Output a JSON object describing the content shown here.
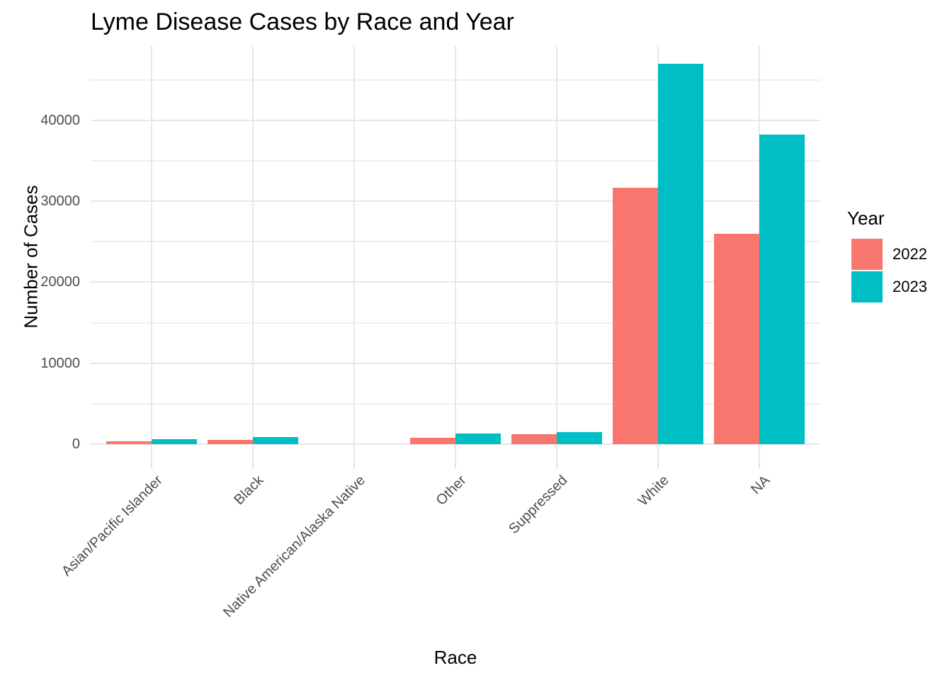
{
  "chart_data": {
    "type": "bar",
    "title": "Lyme Disease Cases by Race and Year",
    "xlabel": "Race",
    "ylabel": "Number of Cases",
    "categories": [
      "Asian/Pacific Islander",
      "Black",
      "Native American/Alaska Native",
      "Other",
      "Suppressed",
      "White",
      "NA"
    ],
    "series": [
      {
        "name": "2022",
        "color": "#F8766D",
        "values": [
          320,
          520,
          0,
          800,
          1200,
          31700,
          26000
        ]
      },
      {
        "name": "2023",
        "color": "#00BFC4",
        "values": [
          640,
          850,
          0,
          1300,
          1450,
          47000,
          38200
        ]
      }
    ],
    "legend": {
      "title": "Year",
      "position": "right"
    },
    "yticks": [
      0,
      10000,
      20000,
      30000,
      40000
    ],
    "y_minor_ticks": [
      5000,
      15000,
      25000,
      35000,
      45000
    ],
    "ylim": [
      0,
      49000
    ],
    "grid": "on",
    "background": "#ffffff",
    "gridline_color": "#e7e7e7",
    "tick_label_color": "#4d4d4d",
    "text_color": "#000000"
  }
}
